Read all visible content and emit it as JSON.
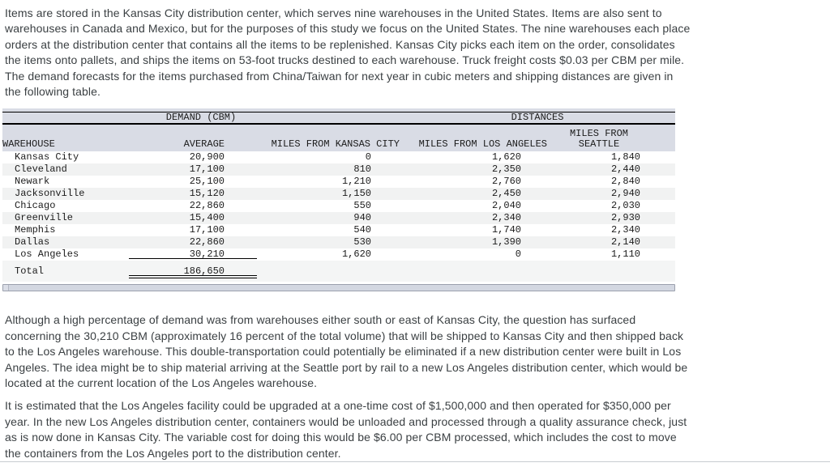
{
  "paragraphs": {
    "p1": "Items are stored in the Kansas City distribution center, which serves nine warehouses in the United States. Items are also sent to\nwarehouses in Canada and Mexico, but for the purposes of this study we focus on the United States. The nine warehouses each place\norders at the distribution center that contains all the items to be replenished. Kansas City picks each item on the order, consolidates\nthe items onto pallets, and ships the items on 53-foot trucks destined to each warehouse. Truck freight costs $0.03 per CBM per mile.\nThe demand forecasts for the items purchased from China/Taiwan for next year in cubic meters and shipping distances are given in\nthe following table.",
    "p2": "Although a high percentage of demand was from warehouses either south or east of Kansas City, the question has surfaced\nconcerning the 30,210 CBM (approximately 16 percent of the total volume) that will be shipped to Kansas City and then shipped back\nto the Los Angeles warehouse. This double-transportation could potentially be eliminated if a new distribution center were built in Los\nAngeles. The idea might be to ship material arriving at the Seattle port by rail to a new Los Angeles distribution center, which would be\nlocated at the current location of the Los Angeles warehouse.",
    "p3": "It is estimated that the Los Angeles facility could be upgraded at a one-time cost of $1,500,000 and then operated for $350,000 per\nyear. In the new Los Angeles distribution center, containers would be unloaded and processed through a quality assurance check, just\nas is now done in Kansas City. The variable cost for doing this would be $6.00 per CBM processed, which includes the cost to move\nthe containers from the Los Angeles port to the distribution center."
  },
  "table": {
    "demand_header": "DEMAND (CBM)",
    "distances_header": "DISTANCES",
    "columns": [
      "WAREHOUSE",
      "AVERAGE",
      "MILES FROM KANSAS CITY",
      "MILES FROM LOS ANGELES",
      "MILES FROM\nSEATTLE"
    ],
    "rows": [
      [
        "Kansas City",
        "20,900",
        "0",
        "1,620",
        "1,840"
      ],
      [
        "Cleveland",
        "17,100",
        "810",
        "2,350",
        "2,440"
      ],
      [
        "Newark",
        "25,100",
        "1,210",
        "2,760",
        "2,840"
      ],
      [
        "Jacksonville",
        "15,120",
        "1,150",
        "2,450",
        "2,940"
      ],
      [
        "Chicago",
        "22,860",
        "550",
        "2,040",
        "2,030"
      ],
      [
        "Greenville",
        "15,400",
        "940",
        "2,340",
        "2,930"
      ],
      [
        "Memphis",
        "17,100",
        "540",
        "1,740",
        "2,340"
      ],
      [
        "Dallas",
        "22,860",
        "530",
        "1,390",
        "2,140"
      ],
      [
        "Los Angeles",
        "30,210",
        "1,620",
        "0",
        "1,110"
      ]
    ],
    "total_label": "Total",
    "total_value": "186,650"
  },
  "colors": {
    "table_header_bg": "#d9dce5",
    "alt_row_bg": "#f1f2f2",
    "body_text": "#3b4043",
    "table_text": "#1c1c1c"
  }
}
